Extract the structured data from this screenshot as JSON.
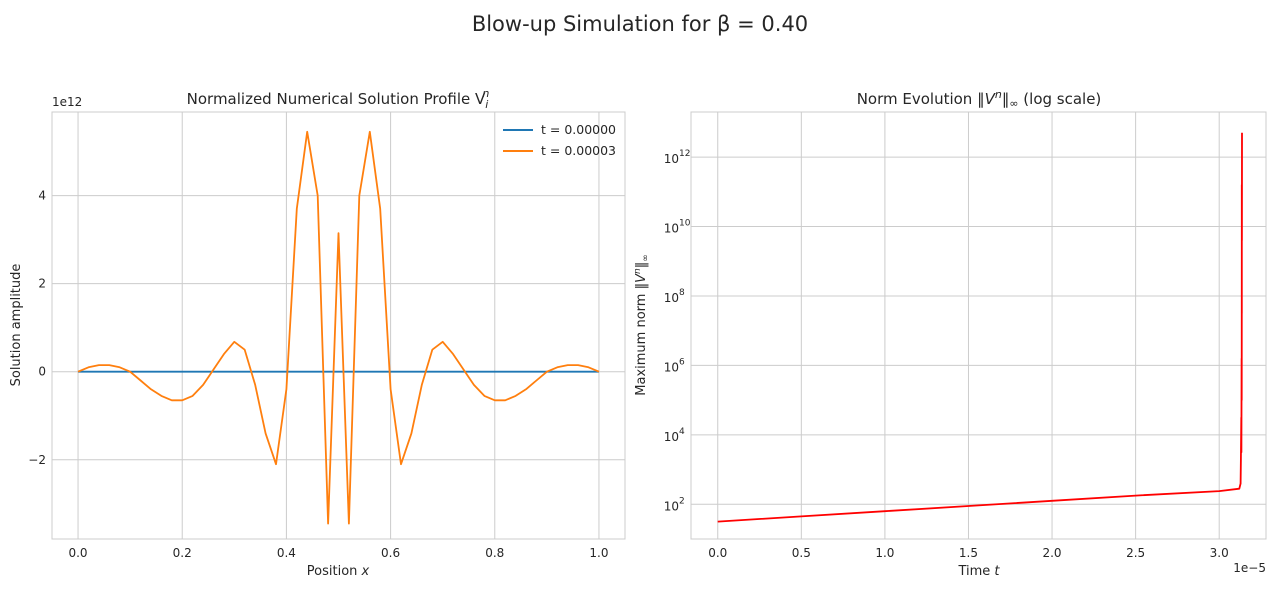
{
  "figure": {
    "title": "Blow-up Simulation for β = 0.40"
  },
  "colors": {
    "series0": "#1f77b4",
    "series1": "#ff7f0e",
    "norm": "#ff0000",
    "grid": "#cccccc",
    "frame": "#cccccc"
  },
  "chart_data": [
    {
      "type": "line",
      "title": "Normalized Numerical Solution Profile V",
      "title_super": "n",
      "title_sub": "i",
      "xlabel": "Position",
      "xlabel_var": "x",
      "ylabel": "Solution amplitude",
      "y_offset_label": "1e12",
      "xlim": [
        -0.05,
        1.05
      ],
      "ylim": [
        -3.8,
        5.9
      ],
      "xticks": [
        0.0,
        0.2,
        0.4,
        0.6,
        0.8,
        1.0
      ],
      "xtick_labels": [
        "0.0",
        "0.2",
        "0.4",
        "0.6",
        "0.8",
        "1.0"
      ],
      "yticks": [
        -2,
        0,
        2,
        4
      ],
      "ytick_labels": [
        "−2",
        "0",
        "2",
        "4"
      ],
      "grid": true,
      "legend_position": "top-right",
      "series": [
        {
          "name": "t = 0.00000",
          "color": "#1f77b4",
          "x": [
            0.0,
            1.0
          ],
          "y": [
            0.0,
            0.0
          ]
        },
        {
          "name": "t = 0.00003",
          "color": "#ff7f0e",
          "x": [
            0.0,
            0.02,
            0.04,
            0.06,
            0.08,
            0.1,
            0.12,
            0.14,
            0.16,
            0.18,
            0.2,
            0.22,
            0.24,
            0.26,
            0.28,
            0.3,
            0.32,
            0.34,
            0.36,
            0.38,
            0.4,
            0.42,
            0.44,
            0.46,
            0.48,
            0.5,
            0.52,
            0.54,
            0.56,
            0.58,
            0.6,
            0.62,
            0.64,
            0.66,
            0.68,
            0.7,
            0.72,
            0.74,
            0.76,
            0.78,
            0.8,
            0.82,
            0.84,
            0.86,
            0.88,
            0.9,
            0.92,
            0.94,
            0.96,
            0.98,
            1.0
          ],
          "y": [
            0.0,
            0.1,
            0.15,
            0.15,
            0.1,
            0.0,
            -0.2,
            -0.4,
            -0.55,
            -0.65,
            -0.65,
            -0.55,
            -0.3,
            0.05,
            0.4,
            0.68,
            0.5,
            -0.3,
            -1.4,
            -2.1,
            -0.4,
            3.7,
            5.45,
            4.0,
            -3.45,
            3.15,
            -3.45,
            4.0,
            5.45,
            3.7,
            -0.4,
            -2.1,
            -1.4,
            -0.3,
            0.5,
            0.68,
            0.4,
            0.05,
            -0.3,
            -0.55,
            -0.65,
            -0.65,
            -0.55,
            -0.4,
            -0.2,
            0.0,
            0.1,
            0.15,
            0.15,
            0.1,
            0.0
          ]
        }
      ]
    },
    {
      "type": "line",
      "title_prefix": "Norm Evolution",
      "title_suffix": "(log scale)",
      "xlabel": "Time",
      "xlabel_var": "t",
      "ylabel": "Maximum norm",
      "x_offset_label": "1e−5",
      "yscale": "log",
      "xlim": [
        -0.16,
        3.28
      ],
      "ylim_log10": [
        1.0,
        13.3
      ],
      "xticks": [
        0.0,
        0.5,
        1.0,
        1.5,
        2.0,
        2.5,
        3.0
      ],
      "xtick_labels": [
        "0.0",
        "0.5",
        "1.0",
        "1.5",
        "2.0",
        "2.5",
        "3.0"
      ],
      "yticks_log10": [
        2,
        4,
        6,
        8,
        10,
        12
      ],
      "ytick_labels": [
        "10",
        "10",
        "10",
        "10",
        "10",
        "10"
      ],
      "ytick_exponents": [
        "2",
        "4",
        "6",
        "8",
        "10",
        "12"
      ],
      "grid": true,
      "series": [
        {
          "color": "#ff0000",
          "x": [
            0.0,
            0.5,
            1.0,
            1.5,
            2.0,
            2.5,
            3.0,
            3.12,
            3.128,
            3.13,
            3.132,
            3.133,
            3.134,
            3.1345,
            3.135,
            3.1352,
            3.1355,
            3.136,
            3.1362
          ],
          "y_log10": [
            1.5,
            1.65,
            1.8,
            1.95,
            2.1,
            2.25,
            2.38,
            2.45,
            2.6,
            3.3,
            4.5,
            3.5,
            6.2,
            5.0,
            9.3,
            7.5,
            11.2,
            9.6,
            12.7
          ]
        }
      ]
    }
  ]
}
